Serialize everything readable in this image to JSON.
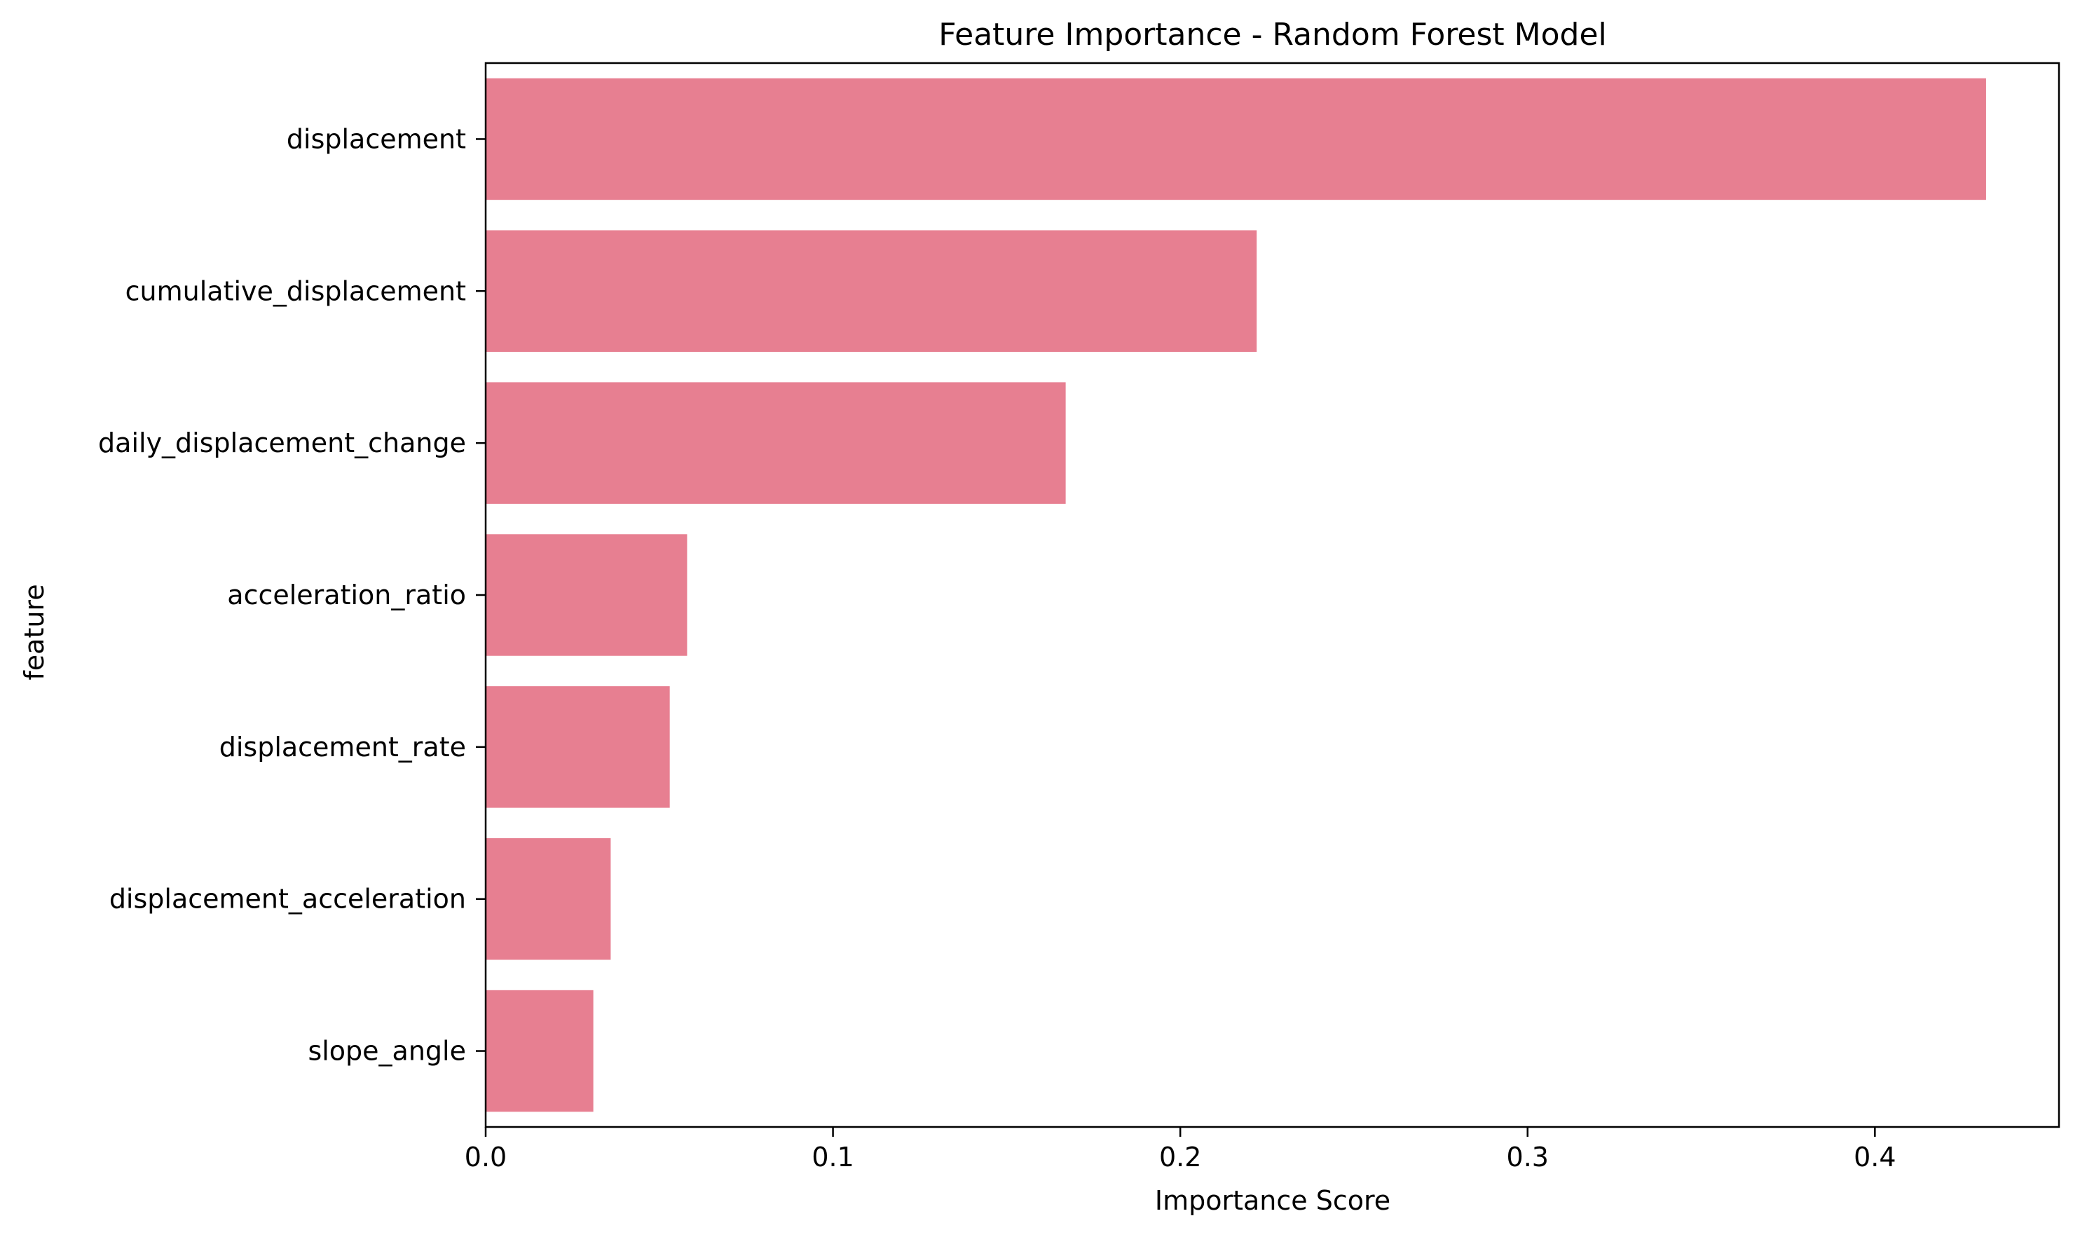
{
  "chart_data": {
    "type": "bar",
    "orientation": "horizontal",
    "title": "Feature Importance - Random Forest Model",
    "xlabel": "Importance Score",
    "ylabel": "feature",
    "categories": [
      "displacement",
      "cumulative_displacement",
      "daily_displacement_change",
      "acceleration_ratio",
      "displacement_rate",
      "displacement_acceleration",
      "slope_angle"
    ],
    "values": [
      0.432,
      0.222,
      0.167,
      0.058,
      0.053,
      0.036,
      0.031
    ],
    "xlim": [
      0,
      0.453
    ],
    "xticks": [
      0.0,
      0.1,
      0.2,
      0.3,
      0.4
    ],
    "xtick_labels": [
      "0.0",
      "0.1",
      "0.2",
      "0.3",
      "0.4"
    ],
    "bar_color": "#e77f91",
    "grid": false,
    "legend": "none"
  }
}
